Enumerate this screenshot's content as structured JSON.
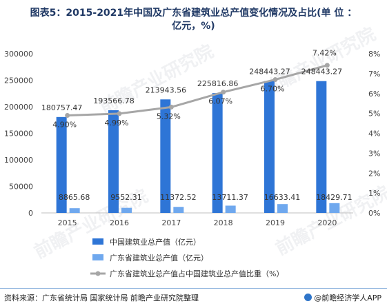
{
  "title_line1": "图表5：2015-2021年中国及广东省建筑业总产值变化情况及占比(单 位 ：",
  "title_line2": "亿元，%)",
  "footer": {
    "source": "资料来源：广东省统计局 国家统计局 前瞻产业研究院整理",
    "brand": "@前瞻经济学人APP"
  },
  "watermark": "前瞻产业研究院",
  "chart_data": {
    "type": "bar",
    "categories": [
      "2015",
      "2016",
      "2017",
      "2018",
      "2019",
      "2020"
    ],
    "series": [
      {
        "name": "中国建筑业总产值（亿元）",
        "type": "bar",
        "axis": "left",
        "color": "#2e75d6",
        "values": [
          180757.47,
          193566.78,
          213943.56,
          225816.86,
          248443.27,
          248443.27
        ],
        "labels": [
          "180757.47",
          "193566.78",
          "213943.56",
          "225816.86",
          "248443.27",
          "248443.27"
        ]
      },
      {
        "name": "广东省建筑业总产值（亿元）",
        "type": "bar",
        "axis": "left",
        "color": "#6fa8ee",
        "values": [
          8865.68,
          9552.31,
          11372.52,
          13711.37,
          16633.41,
          18429.71
        ],
        "labels": [
          "8865.68",
          "9552.31",
          "11372.52",
          "13711.37",
          "16633.41",
          "18429.71"
        ]
      },
      {
        "name": "广东省建筑业总产值占中国建筑业总产值比重（%）",
        "type": "line",
        "axis": "right",
        "color": "#a6a6a6",
        "values": [
          4.9,
          4.99,
          5.32,
          6.07,
          6.7,
          7.42
        ],
        "labels": [
          "4.90%",
          "4.99%",
          "5.32%",
          "6.07%",
          "6.70%",
          "7.42%"
        ]
      }
    ],
    "y_left": {
      "min": 0,
      "max": 300000,
      "ticks": [
        "0",
        "50000",
        "100000",
        "150000",
        "200000",
        "250000",
        "300000"
      ]
    },
    "y_right": {
      "min": 0,
      "max": 8,
      "ticks": [
        "0%",
        "1%",
        "2%",
        "3%",
        "4%",
        "5%",
        "6%",
        "7%",
        "8%"
      ]
    },
    "grid": false,
    "legend_position": "bottom"
  }
}
